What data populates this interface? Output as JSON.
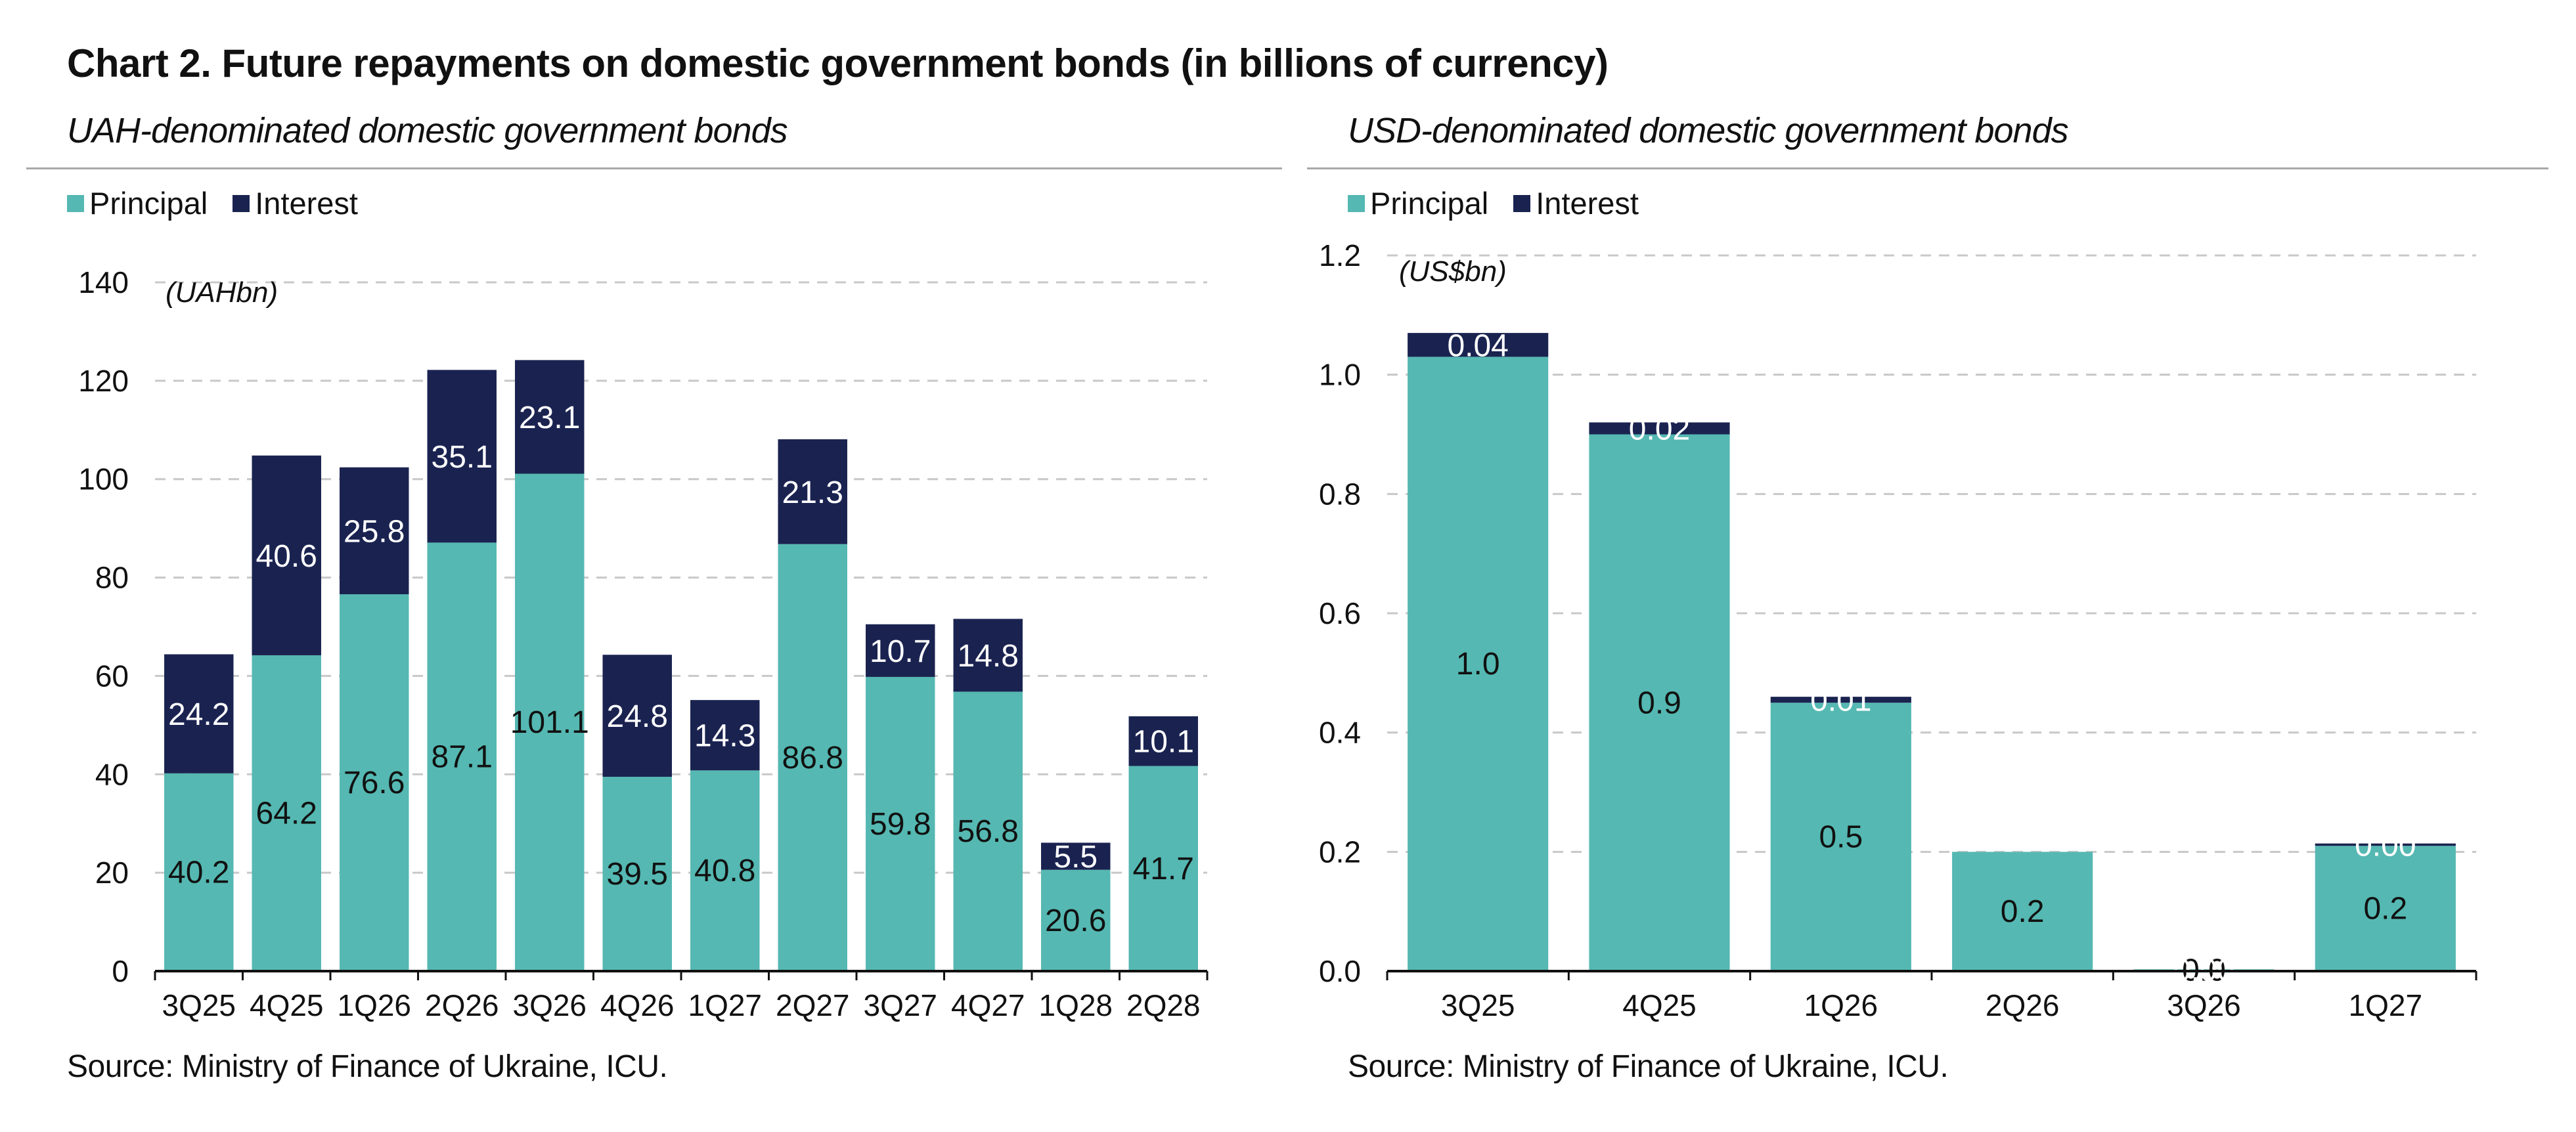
{
  "title": "Chart 2. Future repayments on domestic government bonds (in billions of currency)",
  "colors": {
    "principal": "#55b8b2",
    "interest": "#1a2350",
    "grid": "#c8c8c8",
    "rule": "#a8a8a8"
  },
  "left_panel": {
    "subtitle": "UAH-denominated domestic government bonds",
    "legend": {
      "principal": "Principal",
      "interest": "Interest"
    },
    "unit_label": "(UAHbn)",
    "source": "Source: Ministry of Finance of Ukraine, ICU."
  },
  "right_panel": {
    "subtitle": "USD-denominated domestic government bonds",
    "legend": {
      "principal": "Principal",
      "interest": "Interest"
    },
    "unit_label": "(US$bn)",
    "source": "Source: Ministry of Finance of Ukraine, ICU."
  },
  "chart_data": [
    {
      "type": "bar",
      "stacked": true,
      "title": "UAH-denominated domestic government bonds",
      "ylabel": "(UAHbn)",
      "ylim": [
        0,
        140
      ],
      "yticks": [
        "0",
        "20",
        "40",
        "60",
        "80",
        "100",
        "120",
        "140"
      ],
      "grid": true,
      "legend_position": "top-left",
      "categories": [
        "3Q25",
        "4Q25",
        "1Q26",
        "2Q26",
        "3Q26",
        "4Q26",
        "1Q27",
        "2Q27",
        "3Q27",
        "4Q27",
        "1Q28",
        "2Q28"
      ],
      "series": [
        {
          "name": "Principal",
          "values": [
            40.2,
            64.2,
            76.6,
            87.1,
            101.1,
            39.5,
            40.8,
            86.8,
            59.8,
            56.8,
            20.6,
            41.7
          ],
          "labels": [
            "40.2",
            "64.2",
            "76.6",
            "87.1",
            "101.1",
            "39.5",
            "40.8",
            "86.8",
            "59.8",
            "56.8",
            "20.6",
            "41.7"
          ]
        },
        {
          "name": "Interest",
          "values": [
            24.2,
            40.6,
            25.8,
            35.1,
            23.1,
            24.8,
            14.3,
            21.3,
            10.7,
            14.8,
            5.5,
            10.1
          ],
          "labels": [
            "24.2",
            "40.6",
            "25.8",
            "35.1",
            "23.1",
            "24.8",
            "14.3",
            "21.3",
            "10.7",
            "14.8",
            "5.5",
            "10.1"
          ]
        }
      ]
    },
    {
      "type": "bar",
      "stacked": true,
      "title": "USD-denominated domestic government bonds",
      "ylabel": "(US$bn)",
      "ylim": [
        0,
        1.2
      ],
      "yticks": [
        "0.0",
        "0.2",
        "0.4",
        "0.6",
        "0.8",
        "1.0",
        "1.2"
      ],
      "grid": true,
      "legend_position": "top-left",
      "categories": [
        "3Q25",
        "4Q25",
        "1Q26",
        "2Q26",
        "3Q26",
        "1Q27"
      ],
      "series": [
        {
          "name": "Principal",
          "values": [
            1.03,
            0.9,
            0.45,
            0.2,
            0.003,
            0.21
          ],
          "labels": [
            "1.0",
            "0.9",
            "0.5",
            "0.2",
            "0.0",
            "0.2"
          ]
        },
        {
          "name": "Interest",
          "values": [
            0.04,
            0.02,
            0.01,
            0.0,
            0.0,
            0.004
          ],
          "labels": [
            "0.04",
            "0.02",
            "0.01",
            "",
            "0.00",
            "0.00"
          ]
        }
      ]
    }
  ]
}
